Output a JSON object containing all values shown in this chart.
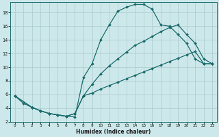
{
  "title": "",
  "xlabel": "Humidex (Indice chaleur)",
  "bg_color": "#cde8ea",
  "line_color": "#1a6b6b",
  "grid_color": "#a8cbce",
  "xlim": [
    -0.5,
    23.5
  ],
  "ylim": [
    2,
    19.5
  ],
  "xticks": [
    0,
    1,
    2,
    3,
    4,
    5,
    6,
    7,
    8,
    9,
    10,
    11,
    12,
    13,
    14,
    15,
    16,
    17,
    18,
    19,
    20,
    21,
    22,
    23
  ],
  "yticks": [
    2,
    4,
    6,
    8,
    10,
    12,
    14,
    16,
    18
  ],
  "line1_x": [
    0,
    1,
    2,
    3,
    4,
    5,
    6,
    7,
    8,
    9,
    10,
    11,
    12,
    13,
    14,
    15,
    16,
    17,
    18,
    19,
    20,
    21,
    22,
    23
  ],
  "line1_y": [
    5.8,
    4.7,
    4.1,
    3.6,
    3.2,
    3.0,
    2.8,
    2.7,
    8.5,
    10.5,
    14.0,
    16.2,
    18.2,
    18.8,
    19.2,
    19.2,
    18.5,
    16.2,
    16.0,
    14.8,
    13.5,
    11.2,
    10.5,
    10.5
  ],
  "line2_x": [
    0,
    2,
    3,
    4,
    5,
    6,
    7,
    8,
    9,
    10,
    11,
    12,
    13,
    14,
    15,
    16,
    17,
    18,
    19,
    20,
    21,
    22,
    23
  ],
  "line2_y": [
    5.8,
    4.1,
    3.6,
    3.2,
    3.0,
    2.8,
    3.2,
    5.8,
    7.5,
    9.0,
    10.2,
    11.2,
    12.2,
    13.2,
    13.8,
    14.5,
    15.2,
    15.8,
    16.2,
    14.8,
    13.5,
    11.2,
    10.5
  ],
  "line3_x": [
    0,
    2,
    3,
    4,
    5,
    6,
    7,
    8,
    9,
    10,
    11,
    12,
    13,
    14,
    15,
    16,
    17,
    18,
    19,
    20,
    21,
    22,
    23
  ],
  "line3_y": [
    5.8,
    4.1,
    3.6,
    3.2,
    3.0,
    2.8,
    3.2,
    5.8,
    6.2,
    6.8,
    7.3,
    7.8,
    8.3,
    8.8,
    9.3,
    9.8,
    10.3,
    10.8,
    11.3,
    11.8,
    12.3,
    10.5,
    10.5
  ]
}
